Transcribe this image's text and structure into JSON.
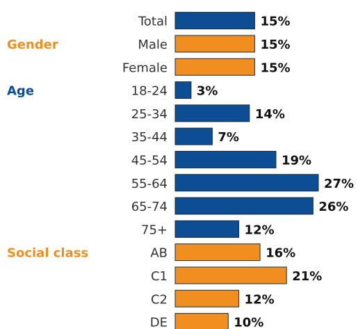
{
  "chart_data": {
    "type": "bar",
    "orientation": "horizontal",
    "categories": [
      "Total",
      "Male",
      "Female",
      "18-24",
      "25-34",
      "35-44",
      "45-54",
      "55-64",
      "65-74",
      "75+",
      "AB",
      "C1",
      "C2",
      "DE"
    ],
    "values": [
      15,
      15,
      15,
      3,
      14,
      7,
      19,
      27,
      26,
      12,
      16,
      21,
      12,
      10
    ],
    "value_labels": [
      "15%",
      "15%",
      "15%",
      "3%",
      "14%",
      "7%",
      "19%",
      "27%",
      "26%",
      "12%",
      "16%",
      "21%",
      "12%",
      "10%"
    ],
    "colors": [
      "#0c4d93",
      "#f08f1f",
      "#f08f1f",
      "#0c4d93",
      "#0c4d93",
      "#0c4d93",
      "#0c4d93",
      "#0c4d93",
      "#0c4d93",
      "#0c4d93",
      "#f08f1f",
      "#f08f1f",
      "#f08f1f",
      "#f08f1f"
    ],
    "groups": [
      {
        "name": "Gender",
        "color": "#f08f1f",
        "first_category": 1
      },
      {
        "name": "Age",
        "color": "#0c4d93",
        "first_category": 3
      },
      {
        "name": "Social class",
        "color": "#f08f1f",
        "first_category": 10
      }
    ]
  }
}
